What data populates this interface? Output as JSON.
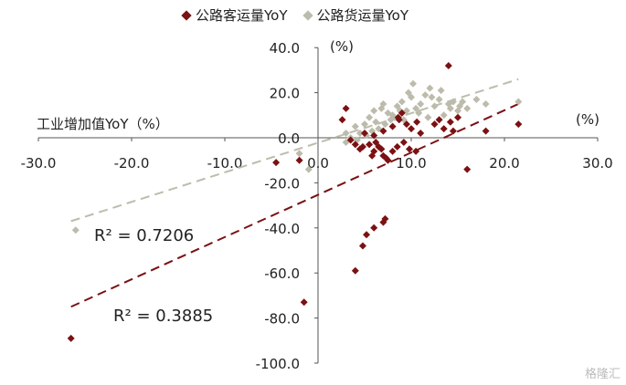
{
  "chart_data": {
    "type": "scatter",
    "xlabel": "工业增加值YoY（%）",
    "ylabel": "(%)",
    "x_unit": "(%)",
    "xlim": [
      -30,
      30
    ],
    "ylim": [
      -100,
      40
    ],
    "xticks": [
      "-30.0",
      "-20.0",
      "-10.0",
      "0.0",
      "10.0",
      "20.0",
      "30.0"
    ],
    "yticks": [
      "40.0",
      "20.0",
      "0.0",
      "-20.0",
      "-40.0",
      "-60.0",
      "-80.0",
      "-100.0"
    ],
    "legend_position": "top",
    "series": [
      {
        "name": "公路客运量YoY",
        "color": "#7b1113",
        "r_squared_label": "R² = 0.3885",
        "trend": {
          "x": [
            -26.5,
            21.5
          ],
          "y": [
            -75,
            15
          ]
        },
        "points": [
          [
            -26.5,
            -89
          ],
          [
            -1.5,
            -73
          ],
          [
            -4.5,
            -11
          ],
          [
            -2,
            -10
          ],
          [
            4,
            -59
          ],
          [
            4.8,
            -48
          ],
          [
            5.2,
            -43
          ],
          [
            6,
            -40
          ],
          [
            7,
            -37.5
          ],
          [
            7.2,
            -36
          ],
          [
            3,
            13
          ],
          [
            2.6,
            8
          ],
          [
            4,
            -3
          ],
          [
            4.8,
            -4
          ],
          [
            5.5,
            -3
          ],
          [
            6,
            -6
          ],
          [
            6.5,
            -4
          ],
          [
            7,
            -8
          ],
          [
            7.5,
            -10
          ],
          [
            8,
            -6
          ],
          [
            6.2,
            -2
          ],
          [
            5.8,
            -8
          ],
          [
            6.8,
            -5
          ],
          [
            7.3,
            -9
          ],
          [
            8.5,
            -4
          ],
          [
            9.2,
            -2
          ],
          [
            9.8,
            -5
          ],
          [
            10.5,
            -6
          ],
          [
            5,
            2
          ],
          [
            6,
            1
          ],
          [
            7,
            3
          ],
          [
            8,
            5
          ],
          [
            8.6,
            9
          ],
          [
            9.5,
            6
          ],
          [
            10,
            4
          ],
          [
            10.6,
            7
          ],
          [
            11,
            2
          ],
          [
            13.5,
            4
          ],
          [
            14,
            32
          ],
          [
            14.2,
            7
          ],
          [
            15,
            9
          ],
          [
            12.5,
            6
          ],
          [
            13,
            8
          ],
          [
            14.5,
            3
          ],
          [
            16,
            -14
          ],
          [
            18,
            3
          ],
          [
            21.5,
            6
          ],
          [
            9,
            11
          ],
          [
            8.7,
            8
          ],
          [
            3.5,
            -1
          ],
          [
            4.5,
            -5
          ]
        ]
      },
      {
        "name": "公路货运量YoY",
        "color": "#bdbcac",
        "r_squared_label": "R² = 0.7206",
        "trend": {
          "x": [
            -26.5,
            21.5
          ],
          "y": [
            -37,
            26
          ]
        },
        "points": [
          [
            -26,
            -41
          ],
          [
            -2,
            -7
          ],
          [
            -1,
            -14
          ],
          [
            3,
            2
          ],
          [
            3.5,
            0
          ],
          [
            4,
            5
          ],
          [
            5,
            6
          ],
          [
            5.5,
            9
          ],
          [
            6,
            12
          ],
          [
            6.2,
            7
          ],
          [
            6.8,
            13
          ],
          [
            7,
            15
          ],
          [
            7.5,
            11
          ],
          [
            8,
            10
          ],
          [
            8.5,
            14
          ],
          [
            9,
            16
          ],
          [
            9.5,
            12
          ],
          [
            10,
            18
          ],
          [
            10.2,
            24
          ],
          [
            10.5,
            13
          ],
          [
            11,
            15
          ],
          [
            11.5,
            19
          ],
          [
            12,
            22
          ],
          [
            12.5,
            14
          ],
          [
            13,
            17
          ],
          [
            13.5,
            10
          ],
          [
            14,
            15
          ],
          [
            14.5,
            16
          ],
          [
            15,
            12
          ],
          [
            15.5,
            16
          ],
          [
            16,
            13
          ],
          [
            17,
            17
          ],
          [
            18,
            15
          ],
          [
            21.5,
            16
          ],
          [
            4.5,
            2
          ],
          [
            5.2,
            1
          ],
          [
            6.5,
            4
          ],
          [
            7.2,
            6
          ],
          [
            8.2,
            9
          ],
          [
            9.2,
            8
          ],
          [
            10.8,
            11
          ],
          [
            12.2,
            18
          ],
          [
            13.2,
            21
          ],
          [
            9.7,
            20
          ],
          [
            8.8,
            12
          ],
          [
            11.8,
            9
          ],
          [
            3,
            -2
          ],
          [
            4.2,
            -1
          ],
          [
            5.8,
            3
          ],
          [
            7.8,
            8
          ],
          [
            14.2,
            13
          ],
          [
            15.2,
            14
          ]
        ]
      }
    ]
  },
  "watermark": "格隆汇"
}
